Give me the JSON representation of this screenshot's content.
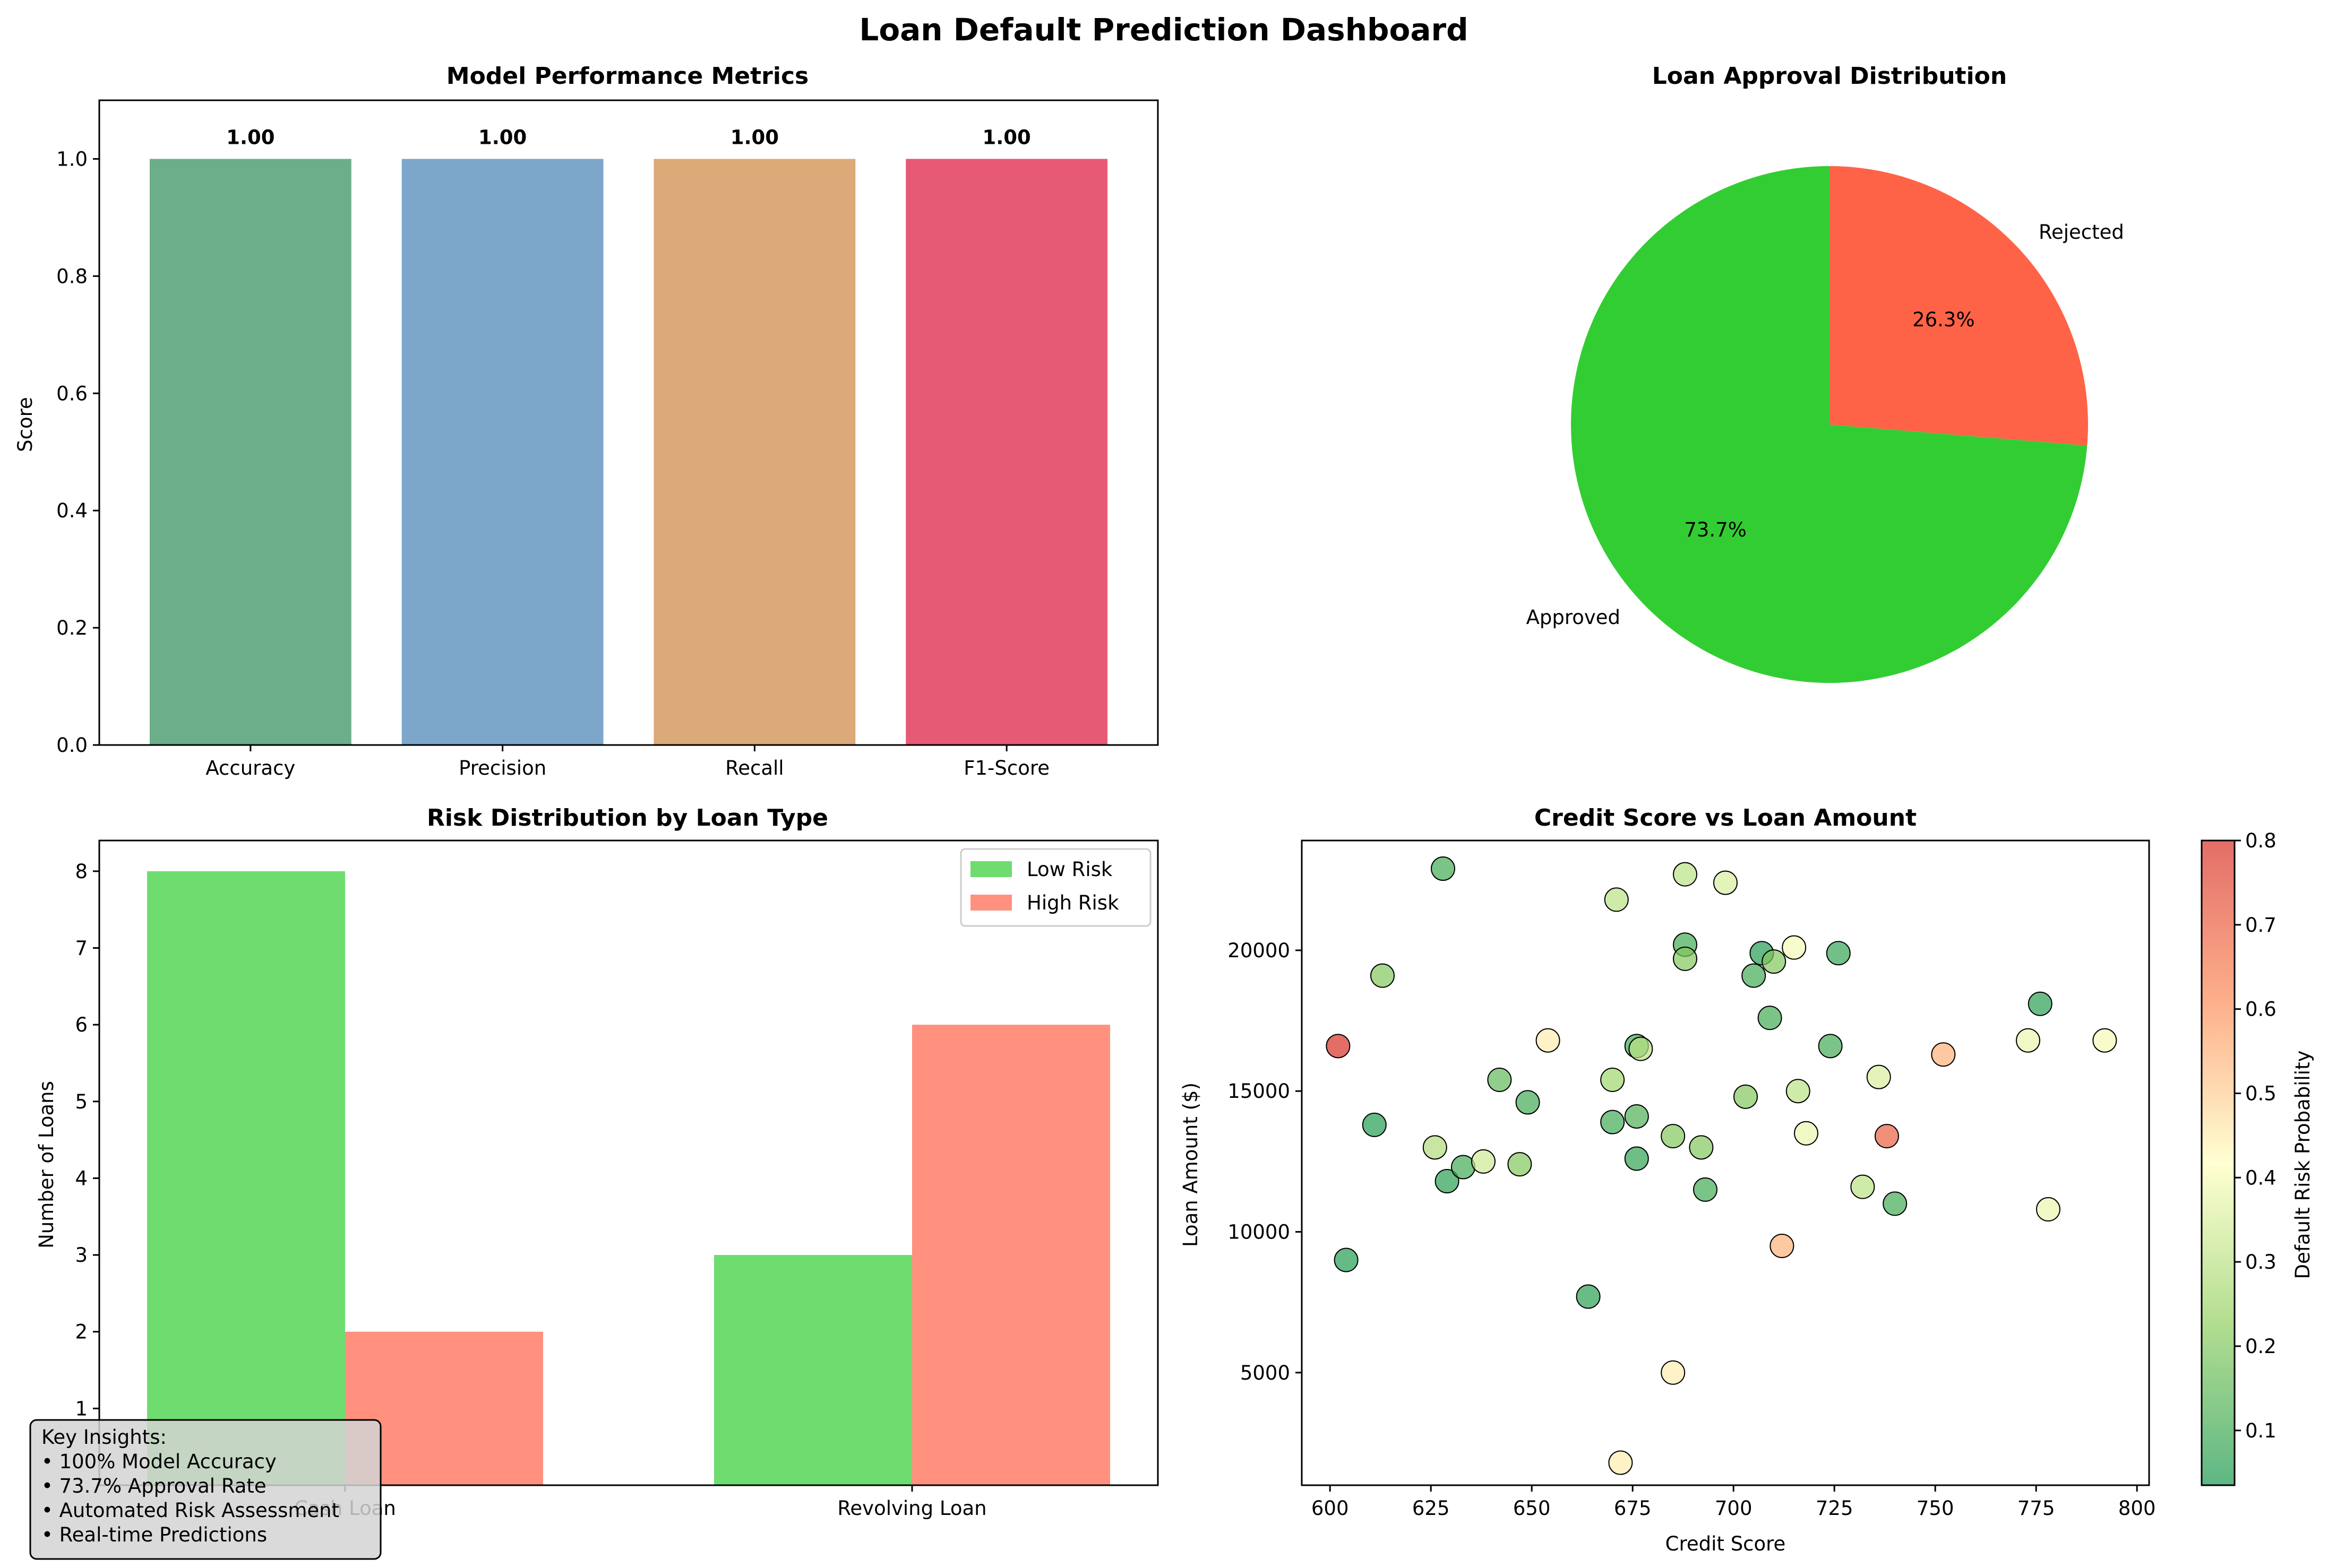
{
  "page": {
    "title": "Loan Default Prediction Dashboard"
  },
  "chart_data": [
    {
      "type": "bar",
      "title": "Model Performance Metrics",
      "xlabel": "",
      "ylabel": "Score",
      "categories": [
        "Accuracy",
        "Precision",
        "Recall",
        "F1-Score"
      ],
      "values": [
        1.0,
        1.0,
        1.0,
        1.0
      ],
      "data_labels": [
        "1.00",
        "1.00",
        "1.00",
        "1.00"
      ],
      "colors": [
        "#2e8b57",
        "#4682b4",
        "#cd853f",
        "#dc143c"
      ],
      "ylim": [
        0,
        1.1
      ],
      "yticks": [
        "0.0",
        "0.2",
        "0.4",
        "0.6",
        "0.8",
        "1.0"
      ],
      "grid": false
    },
    {
      "type": "pie",
      "title": "Loan Approval Distribution",
      "labels": [
        "Approved",
        "Rejected"
      ],
      "values": [
        73.7,
        26.3
      ],
      "pct_labels": [
        "73.7%",
        "26.3%"
      ],
      "colors": [
        "#32cd32",
        "#ff6347"
      ],
      "start_angle": 90
    },
    {
      "type": "bar",
      "title": "Risk Distribution by Loan Type",
      "xlabel": "",
      "ylabel": "Number of Loans",
      "categories": [
        "Cash Loan",
        "Revolving Loan"
      ],
      "series": [
        {
          "name": "Low Risk",
          "values": [
            8,
            3
          ],
          "color": "#32cd32"
        },
        {
          "name": "High Risk",
          "values": [
            2,
            6
          ],
          "color": "#ff6347"
        }
      ],
      "ylim": [
        0,
        8.4
      ],
      "yticks": [
        "1",
        "2",
        "3",
        "4",
        "5",
        "6",
        "7",
        "8"
      ],
      "legend": "top-right",
      "grid": false
    },
    {
      "type": "scatter",
      "title": "Credit Score vs Loan Amount",
      "xlabel": "Credit Score",
      "ylabel": "Loan Amount ($)",
      "xlim": [
        593,
        803
      ],
      "ylim": [
        1000,
        23900
      ],
      "xticks": [
        "600",
        "625",
        "650",
        "675",
        "700",
        "725",
        "750",
        "775",
        "800"
      ],
      "yticks": [
        "5000",
        "10000",
        "15000",
        "20000"
      ],
      "colorbar": {
        "label": "Default Risk Probability",
        "range": [
          0.035,
          0.8
        ],
        "ticks": [
          "0.1",
          "0.2",
          "0.3",
          "0.4",
          "0.5",
          "0.6",
          "0.7",
          "0.8"
        ]
      },
      "points": [
        {
          "x": 602,
          "y": 16600,
          "risk": 0.8
        },
        {
          "x": 604,
          "y": 9000,
          "risk": 0.05
        },
        {
          "x": 611,
          "y": 13800,
          "risk": 0.05
        },
        {
          "x": 613,
          "y": 19100,
          "risk": 0.2
        },
        {
          "x": 626,
          "y": 13000,
          "risk": 0.28
        },
        {
          "x": 628,
          "y": 22900,
          "risk": 0.1
        },
        {
          "x": 629,
          "y": 11800,
          "risk": 0.06
        },
        {
          "x": 633,
          "y": 12300,
          "risk": 0.1
        },
        {
          "x": 638,
          "y": 12500,
          "risk": 0.33
        },
        {
          "x": 642,
          "y": 15400,
          "risk": 0.15
        },
        {
          "x": 647,
          "y": 12400,
          "risk": 0.2
        },
        {
          "x": 649,
          "y": 14600,
          "risk": 0.1
        },
        {
          "x": 654,
          "y": 16800,
          "risk": 0.45
        },
        {
          "x": 664,
          "y": 7700,
          "risk": 0.06
        },
        {
          "x": 670,
          "y": 13900,
          "risk": 0.1
        },
        {
          "x": 670,
          "y": 15400,
          "risk": 0.25
        },
        {
          "x": 671,
          "y": 21800,
          "risk": 0.3
        },
        {
          "x": 672,
          "y": 1800,
          "risk": 0.45
        },
        {
          "x": 676,
          "y": 16600,
          "risk": 0.1
        },
        {
          "x": 676,
          "y": 14100,
          "risk": 0.12
        },
        {
          "x": 676,
          "y": 12600,
          "risk": 0.07
        },
        {
          "x": 677,
          "y": 16500,
          "risk": 0.3
        },
        {
          "x": 685,
          "y": 13400,
          "risk": 0.2
        },
        {
          "x": 685,
          "y": 5000,
          "risk": 0.45
        },
        {
          "x": 688,
          "y": 20200,
          "risk": 0.1
        },
        {
          "x": 688,
          "y": 19700,
          "risk": 0.2
        },
        {
          "x": 688,
          "y": 22700,
          "risk": 0.3
        },
        {
          "x": 692,
          "y": 13000,
          "risk": 0.2
        },
        {
          "x": 693,
          "y": 11500,
          "risk": 0.1
        },
        {
          "x": 698,
          "y": 22400,
          "risk": 0.35
        },
        {
          "x": 703,
          "y": 14800,
          "risk": 0.2
        },
        {
          "x": 705,
          "y": 19100,
          "risk": 0.1
        },
        {
          "x": 707,
          "y": 19900,
          "risk": 0.05
        },
        {
          "x": 709,
          "y": 17600,
          "risk": 0.1
        },
        {
          "x": 710,
          "y": 19600,
          "risk": 0.2
        },
        {
          "x": 712,
          "y": 9500,
          "risk": 0.55
        },
        {
          "x": 715,
          "y": 20100,
          "risk": 0.4
        },
        {
          "x": 716,
          "y": 15000,
          "risk": 0.3
        },
        {
          "x": 718,
          "y": 13500,
          "risk": 0.38
        },
        {
          "x": 724,
          "y": 16600,
          "risk": 0.1
        },
        {
          "x": 726,
          "y": 19900,
          "risk": 0.08
        },
        {
          "x": 732,
          "y": 11600,
          "risk": 0.3
        },
        {
          "x": 736,
          "y": 15500,
          "risk": 0.35
        },
        {
          "x": 738,
          "y": 13400,
          "risk": 0.7
        },
        {
          "x": 740,
          "y": 11000,
          "risk": 0.1
        },
        {
          "x": 752,
          "y": 16300,
          "risk": 0.55
        },
        {
          "x": 773,
          "y": 16800,
          "risk": 0.38
        },
        {
          "x": 776,
          "y": 18100,
          "risk": 0.06
        },
        {
          "x": 778,
          "y": 10800,
          "risk": 0.38
        },
        {
          "x": 792,
          "y": 16800,
          "risk": 0.4
        }
      ]
    }
  ],
  "insights": {
    "title": "Key Insights:",
    "items": [
      "• 100% Model Accuracy",
      "• 73.7% Approval Rate",
      "• Automated Risk Assessment",
      "• Real-time Predictions"
    ]
  }
}
